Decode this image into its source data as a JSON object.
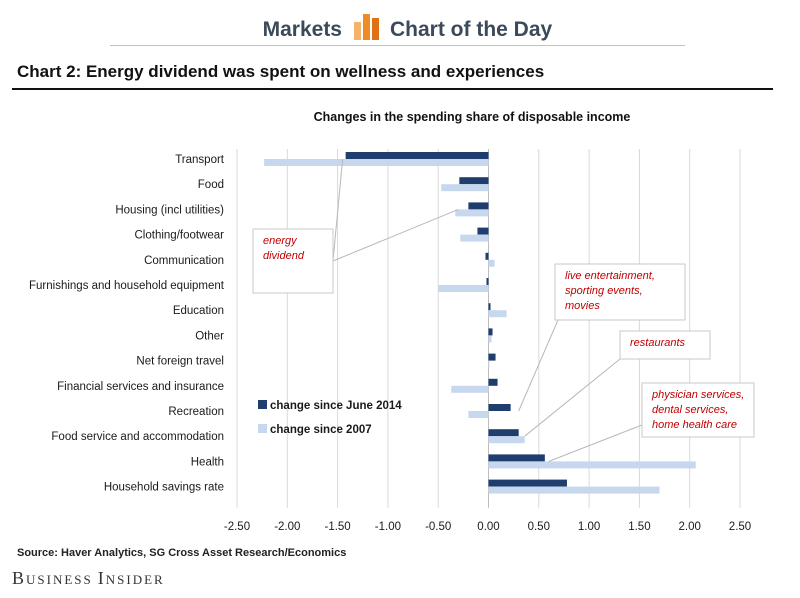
{
  "header": {
    "left_label": "Markets",
    "right_label": "Chart of the Day"
  },
  "title": "Chart 2: Energy dividend was spent on wellness and experiences",
  "source": "Source: Haver Analytics, SG Cross Asset Research/Economics",
  "brand": {
    "first": "Business",
    "second": "Insider"
  },
  "colors": {
    "series1": "#1f3e6e",
    "series2": "#c6d7ee",
    "annotation_text": "#c00000",
    "masthead_text": "#3b4a5a",
    "logo_orange": "#f08a24"
  },
  "chart_data": {
    "type": "bar",
    "orientation": "horizontal",
    "title": "Changes in the spending share of disposable income",
    "categories": [
      "Transport",
      "Food",
      "Housing (incl utilities)",
      "Clothing/footwear",
      "Communication",
      "Furnishings and household equipment",
      "Education",
      "Other",
      "Net foreign travel",
      "Financial services and insurance",
      "Recreation",
      "Food service and accommodation",
      "Health",
      "Household savings rate"
    ],
    "series": [
      {
        "name": "change since June 2014",
        "values": [
          -1.42,
          -0.29,
          -0.2,
          -0.11,
          -0.03,
          -0.02,
          0.02,
          0.04,
          0.07,
          0.09,
          0.22,
          0.3,
          0.56,
          0.78
        ]
      },
      {
        "name": "change since 2007",
        "values": [
          -2.23,
          -0.47,
          -0.33,
          -0.28,
          0.06,
          -0.5,
          0.18,
          0.03,
          0.0,
          -0.37,
          -0.2,
          0.36,
          2.06,
          1.7
        ]
      }
    ],
    "xlim": [
      -2.5,
      2.5
    ],
    "xticks": [
      "-2.50",
      "-2.00",
      "-1.50",
      "-1.00",
      "-0.50",
      "0.00",
      "0.50",
      "1.00",
      "1.50",
      "2.00",
      "2.50"
    ],
    "legend_position": "lower-left",
    "grid": {
      "vertical": true,
      "horizontal": false
    },
    "annotations": [
      {
        "text": [
          "energy",
          "dividend"
        ],
        "targets": [
          "Transport",
          "Housing (incl utilities)"
        ]
      },
      {
        "text": [
          "live entertainment,",
          "sporting events,",
          "movies"
        ],
        "target": "Recreation"
      },
      {
        "text": [
          "restaurants"
        ],
        "target": "Food service and accommodation"
      },
      {
        "text": [
          "physician services,",
          "dental services,",
          "home health care"
        ],
        "target": "Health"
      }
    ]
  }
}
